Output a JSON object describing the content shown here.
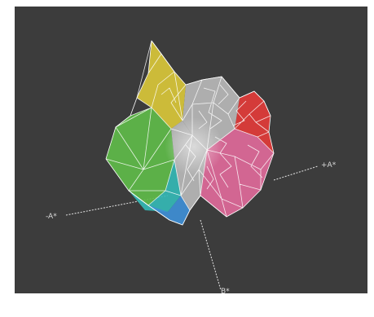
{
  "figure": {
    "background_color": "#3c3c3c",
    "axis_color": "#d9d9d9",
    "wire_color": "#ffffff"
  },
  "axes": {
    "neg_a_label": "-A*",
    "pos_a_label": "+A*",
    "b_label": "B*"
  },
  "gamut_solid": {
    "hue_colors": {
      "yellow": "#d9c73a",
      "red": "#e23c3a",
      "magenta": "#e06a9a",
      "blue": "#3f8fd6",
      "cyan": "#35b8b5",
      "green": "#5fbb4a",
      "neutral": "#b8b8b8"
    }
  }
}
